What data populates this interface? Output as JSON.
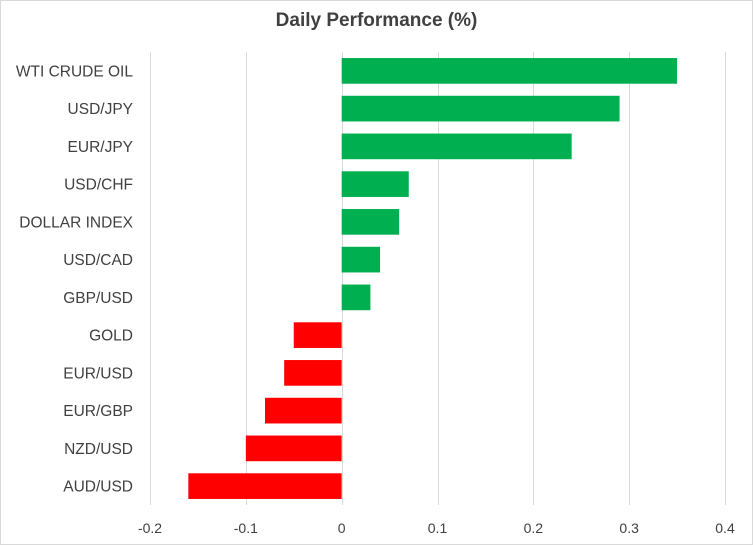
{
  "chart_data": {
    "type": "bar",
    "orientation": "horizontal",
    "title": "Daily Performance (%)",
    "xlabel": "",
    "ylabel": "",
    "xlim": [
      -0.2,
      0.4
    ],
    "x_ticks": [
      "-0.2",
      "-0.1",
      "0",
      "0.1",
      "0.2",
      "0.3",
      "0.4"
    ],
    "grid": "vertical",
    "legend": "none",
    "categories": [
      "WTI CRUDE OIL",
      "USD/JPY",
      "EUR/JPY",
      "USD/CHF",
      "DOLLAR INDEX",
      "USD/CAD",
      "GBP/USD",
      "GOLD",
      "EUR/USD",
      "EUR/GBP",
      "NZD/USD",
      "AUD/USD"
    ],
    "values": [
      0.35,
      0.29,
      0.24,
      0.07,
      0.06,
      0.04,
      0.03,
      -0.05,
      -0.06,
      -0.08,
      -0.1,
      -0.16
    ],
    "colors": {
      "positive": "#00b050",
      "negative": "#ff0000",
      "grid": "#d9d9d9",
      "text": "#404040"
    }
  }
}
